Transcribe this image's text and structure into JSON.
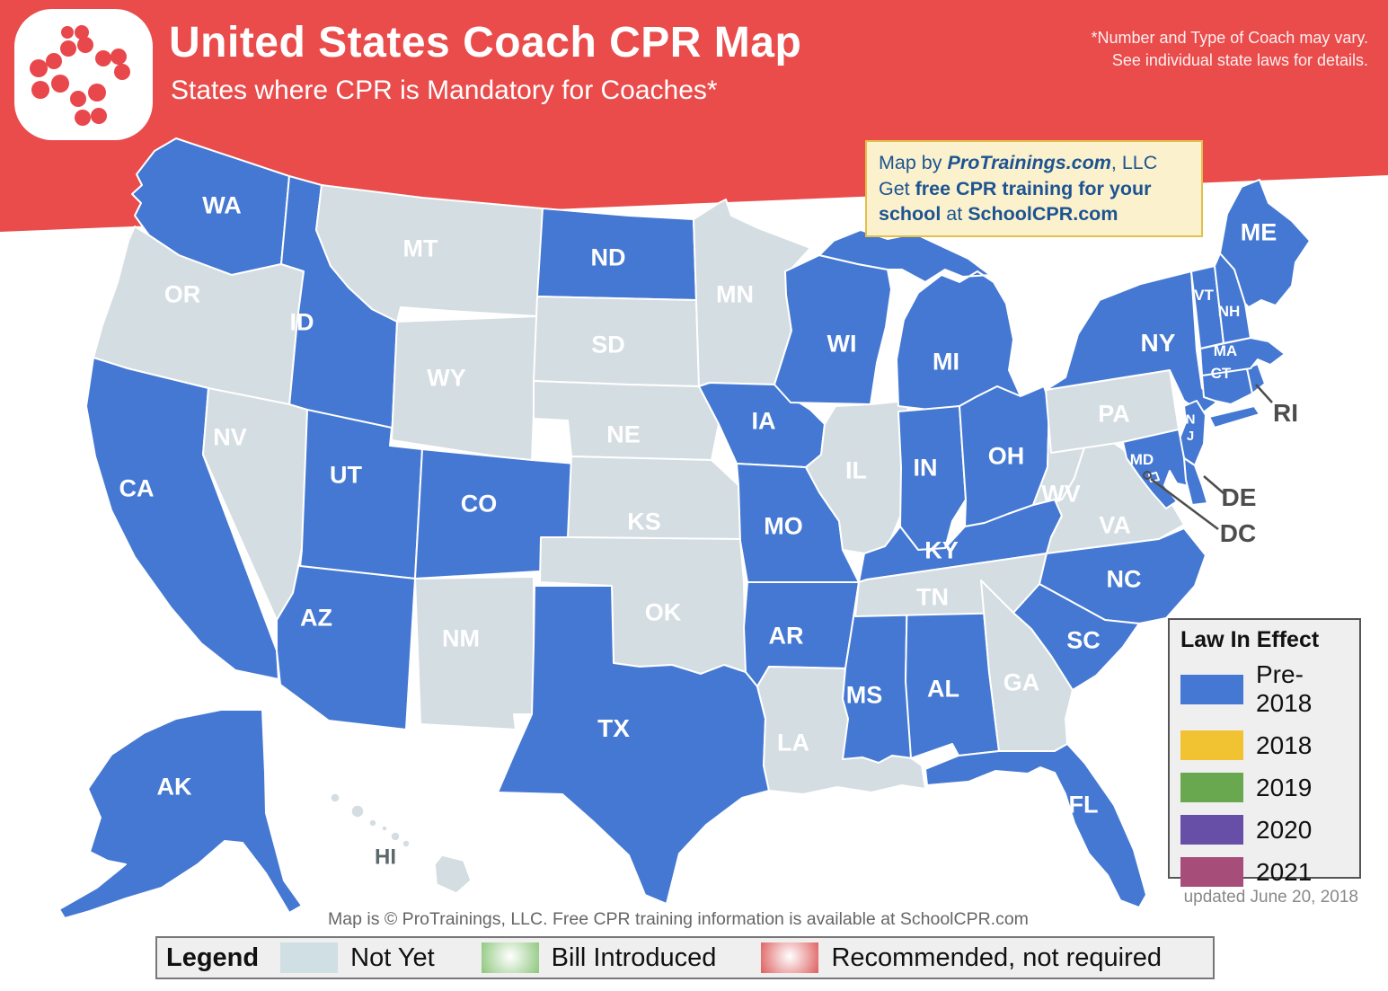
{
  "header": {
    "title": "United States Coach CPR Map",
    "subtitle": "States where CPR is Mandatory for Coaches*",
    "note_line1": "*Number and Type of Coach may vary.",
    "note_line2": "See individual state laws for details."
  },
  "info_box": {
    "line1_prefix": "Map by ",
    "line1_brand": "ProTrainings.com",
    "line1_suffix": ", LLC",
    "line2_prefix": "Get ",
    "line2_bold": "free CPR training for your school",
    "line2_mid": " at ",
    "line2_link": "SchoolCPR.com"
  },
  "law_legend": {
    "title": "Law In Effect",
    "updated": "updated June 20, 2018",
    "items": [
      {
        "label": "Pre-2018",
        "color": "#4478d2"
      },
      {
        "label": "2018",
        "color": "#f1c232"
      },
      {
        "label": "2019",
        "color": "#6aa84f"
      },
      {
        "label": "2020",
        "color": "#674ea7"
      },
      {
        "label": "2021",
        "color": "#a64d79"
      }
    ]
  },
  "footer": {
    "copyright": "Map is © ProTrainings, LLC. Free CPR training information is available at SchoolCPR.com",
    "legend_label": "Legend",
    "items": [
      {
        "label": "Not Yet",
        "style": "flat",
        "color": "#cfdfe3"
      },
      {
        "label": "Bill Introduced",
        "style": "radial",
        "color": "#92c982"
      },
      {
        "label": "Recommended, not required",
        "style": "radial",
        "color": "#e06666"
      }
    ]
  },
  "map": {
    "status_colors": {
      "in_effect": "#4478d2",
      "not_yet": "#d4dde2"
    },
    "banner_color": "#ea4b4b",
    "label_color": "#ffffff",
    "callout_color": "#4d4d4d",
    "states": [
      {
        "id": "WA",
        "label": "WA",
        "status": "in_effect"
      },
      {
        "id": "OR",
        "label": "OR",
        "status": "not_yet"
      },
      {
        "id": "CA",
        "label": "CA",
        "status": "in_effect"
      },
      {
        "id": "ID",
        "label": "ID",
        "status": "in_effect"
      },
      {
        "id": "NV",
        "label": "NV",
        "status": "not_yet"
      },
      {
        "id": "MT",
        "label": "MT",
        "status": "not_yet"
      },
      {
        "id": "WY",
        "label": "WY",
        "status": "not_yet"
      },
      {
        "id": "UT",
        "label": "UT",
        "status": "in_effect"
      },
      {
        "id": "CO",
        "label": "CO",
        "status": "in_effect"
      },
      {
        "id": "AZ",
        "label": "AZ",
        "status": "in_effect"
      },
      {
        "id": "NM",
        "label": "NM",
        "status": "not_yet"
      },
      {
        "id": "ND",
        "label": "ND",
        "status": "in_effect"
      },
      {
        "id": "SD",
        "label": "SD",
        "status": "not_yet"
      },
      {
        "id": "NE",
        "label": "NE",
        "status": "not_yet"
      },
      {
        "id": "KS",
        "label": "KS",
        "status": "not_yet"
      },
      {
        "id": "OK",
        "label": "OK",
        "status": "not_yet"
      },
      {
        "id": "TX",
        "label": "TX",
        "status": "in_effect"
      },
      {
        "id": "MN",
        "label": "MN",
        "status": "not_yet"
      },
      {
        "id": "IA",
        "label": "IA",
        "status": "in_effect"
      },
      {
        "id": "MO",
        "label": "MO",
        "status": "in_effect"
      },
      {
        "id": "AR",
        "label": "AR",
        "status": "in_effect"
      },
      {
        "id": "LA",
        "label": "LA",
        "status": "not_yet"
      },
      {
        "id": "WI",
        "label": "WI",
        "status": "in_effect"
      },
      {
        "id": "IL",
        "label": "IL",
        "status": "not_yet"
      },
      {
        "id": "MS",
        "label": "MS",
        "status": "in_effect"
      },
      {
        "id": "AL",
        "label": "AL",
        "status": "in_effect"
      },
      {
        "id": "MI",
        "label": "MI",
        "status": "in_effect"
      },
      {
        "id": "IN",
        "label": "IN",
        "status": "in_effect"
      },
      {
        "id": "OH",
        "label": "OH",
        "status": "in_effect"
      },
      {
        "id": "KY",
        "label": "KY",
        "status": "in_effect"
      },
      {
        "id": "TN",
        "label": "TN",
        "status": "not_yet"
      },
      {
        "id": "GA",
        "label": "GA",
        "status": "not_yet"
      },
      {
        "id": "FL",
        "label": "FL",
        "status": "in_effect"
      },
      {
        "id": "WV",
        "label": "WV",
        "status": "not_yet"
      },
      {
        "id": "VA",
        "label": "VA",
        "status": "not_yet"
      },
      {
        "id": "NC",
        "label": "NC",
        "status": "in_effect"
      },
      {
        "id": "SC",
        "label": "SC",
        "status": "in_effect"
      },
      {
        "id": "PA",
        "label": "PA",
        "status": "not_yet"
      },
      {
        "id": "NY",
        "label": "NY",
        "status": "in_effect"
      },
      {
        "id": "NJ",
        "label": "NJ",
        "status": "in_effect"
      },
      {
        "id": "MD",
        "label": "MD",
        "status": "in_effect"
      },
      {
        "id": "DE",
        "label": "",
        "status": "in_effect"
      },
      {
        "id": "DC",
        "label": "",
        "status": "in_effect"
      },
      {
        "id": "CT",
        "label": "CT",
        "status": "in_effect"
      },
      {
        "id": "RI",
        "label": "",
        "status": "in_effect"
      },
      {
        "id": "MA",
        "label": "MA",
        "status": "in_effect"
      },
      {
        "id": "VT",
        "label": "VT",
        "status": "in_effect"
      },
      {
        "id": "NH",
        "label": "NH",
        "status": "in_effect"
      },
      {
        "id": "ME",
        "label": "ME",
        "status": "in_effect"
      },
      {
        "id": "AK",
        "label": "AK",
        "status": "in_effect"
      },
      {
        "id": "HI",
        "label": "HI",
        "status": "not_yet"
      }
    ],
    "callouts": [
      {
        "id": "RI",
        "label": "RI"
      },
      {
        "id": "DE",
        "label": "DE"
      },
      {
        "id": "DC",
        "label": "DC"
      }
    ]
  },
  "logo": {
    "icon": "protrainings-dots-logo"
  }
}
